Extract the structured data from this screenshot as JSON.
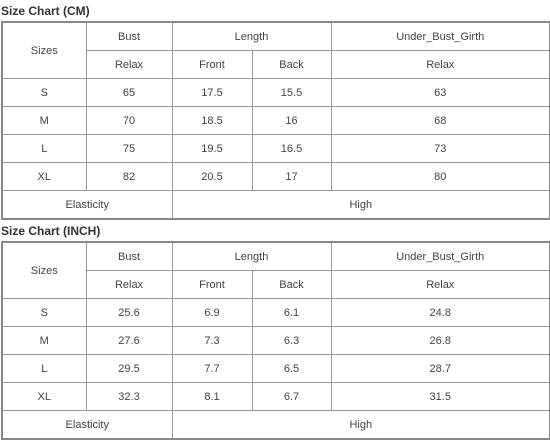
{
  "tables": [
    {
      "title": "Size Chart (CM)",
      "sizes": "Sizes",
      "groups": [
        "Bust",
        "Length",
        "Under_Bust_Girth"
      ],
      "sub": [
        "Relax",
        "Front",
        "Back",
        "Relax"
      ],
      "rows": [
        [
          "S",
          "65",
          "17.5",
          "15.5",
          "63"
        ],
        [
          "M",
          "70",
          "18.5",
          "16",
          "68"
        ],
        [
          "L",
          "75",
          "19.5",
          "16.5",
          "73"
        ],
        [
          "XL",
          "82",
          "20.5",
          "17",
          "80"
        ]
      ],
      "footer": [
        "Elasticity",
        "High"
      ]
    },
    {
      "title": "Size Chart (INCH)",
      "sizes": "Sizes",
      "groups": [
        "Bust",
        "Length",
        "Under_Bust_Girth"
      ],
      "sub": [
        "Relax",
        "Front",
        "Back",
        "Relax"
      ],
      "rows": [
        [
          "S",
          "25.6",
          "6.9",
          "6.1",
          "24.8"
        ],
        [
          "M",
          "27.6",
          "7.3",
          "6.3",
          "26.8"
        ],
        [
          "L",
          "29.5",
          "7.7",
          "6.5",
          "28.7"
        ],
        [
          "XL",
          "32.3",
          "8.1",
          "6.7",
          "31.5"
        ]
      ],
      "footer": [
        "Elasticity",
        "High"
      ]
    }
  ]
}
